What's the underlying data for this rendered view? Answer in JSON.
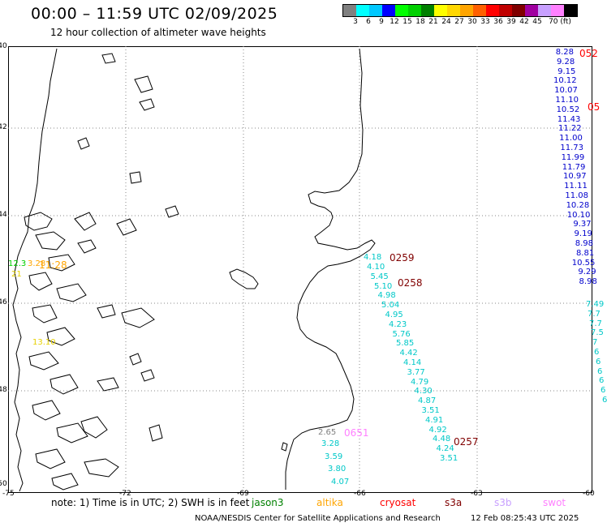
{
  "title": "00:00 – 11:59 UTC 02/09/2025",
  "subtitle": "12 hour collection of altimeter wave heights",
  "colorbar": {
    "colors": [
      "#808080",
      "#00ffff",
      "#00c8ff",
      "#0000ff",
      "#00ff00",
      "#00d000",
      "#008000",
      "#ffff00",
      "#ffd700",
      "#ffa500",
      "#ff6000",
      "#ff0000",
      "#c00000",
      "#800000",
      "#a000a0",
      "#c8a0ff",
      "#ff80ff",
      "#000000"
    ],
    "labels": [
      "3",
      "6",
      "9",
      "12",
      "15",
      "18",
      "21",
      "24",
      "27",
      "30",
      "33",
      "36",
      "39",
      "42",
      "45",
      "70 (ft)"
    ]
  },
  "lat_ticks": [
    "-40",
    "-42",
    "-44",
    "-46",
    "-48",
    "-50"
  ],
  "lon_ticks": [
    "-75",
    "-72",
    "-69",
    "-66",
    "-63",
    "-60"
  ],
  "tracks": {
    "cyan_east": [
      "4.10",
      "5.45",
      "5.10",
      "4.98",
      "5.04",
      "4.95",
      "4.23",
      "5.76",
      "5.85",
      "4.42",
      "4.14",
      "3.77",
      "4.79",
      "4.30",
      "4.87",
      "3.51",
      "4.91",
      "4.92",
      "4.48",
      "4.24",
      "3.51"
    ],
    "cyan_west": [
      "3.28",
      "3.59",
      "3.80",
      "4.07"
    ],
    "blue_right": [
      "8.28",
      "9.28",
      "9.15",
      "10.12",
      "10.07",
      "11.10",
      "10.52",
      "11.43",
      "11.22",
      "11.00",
      "11.73",
      "11.99",
      "11.79",
      "10.97",
      "11.11",
      "11.08",
      "10.28",
      "10.10",
      "9.37",
      "9.19",
      "8.98",
      "8.81",
      "10.55",
      "9.29",
      "8.98"
    ],
    "cyan_right": [
      "7.49",
      "7.7",
      "7.7",
      "7.5",
      "7",
      "6",
      "6",
      "6",
      "6",
      "6",
      "6"
    ]
  },
  "misc_values": {
    "cyan_first": "4.18",
    "gray_value": "2.65",
    "green_value": "12.3",
    "yellow_a": "21",
    "yellow_b": "13.10",
    "orange_value": "3.28"
  },
  "time_labels": {
    "t0259": "0259",
    "t0258": "0258",
    "t0257": "0257",
    "t0651": "0651",
    "t052a": "052",
    "t052b": "05",
    "orange_time": "11:28"
  },
  "note_prefix": "note:  1) Time is in UTC;  2) SWH is in feet",
  "legend": [
    {
      "name": "jason3",
      "color": "#008000"
    },
    {
      "name": "altika",
      "color": "#ffa500"
    },
    {
      "name": "cryosat",
      "color": "#ff0000"
    },
    {
      "name": "s3a",
      "color": "#800000"
    },
    {
      "name": "s3b",
      "color": "#c8a0ff"
    },
    {
      "name": "swot",
      "color": "#ff80ff"
    }
  ],
  "footer_left": "NOAA/NESDIS Center for Satellite Applications and Research",
  "footer_right": "12 Feb 08:25:43 UTC 2025"
}
